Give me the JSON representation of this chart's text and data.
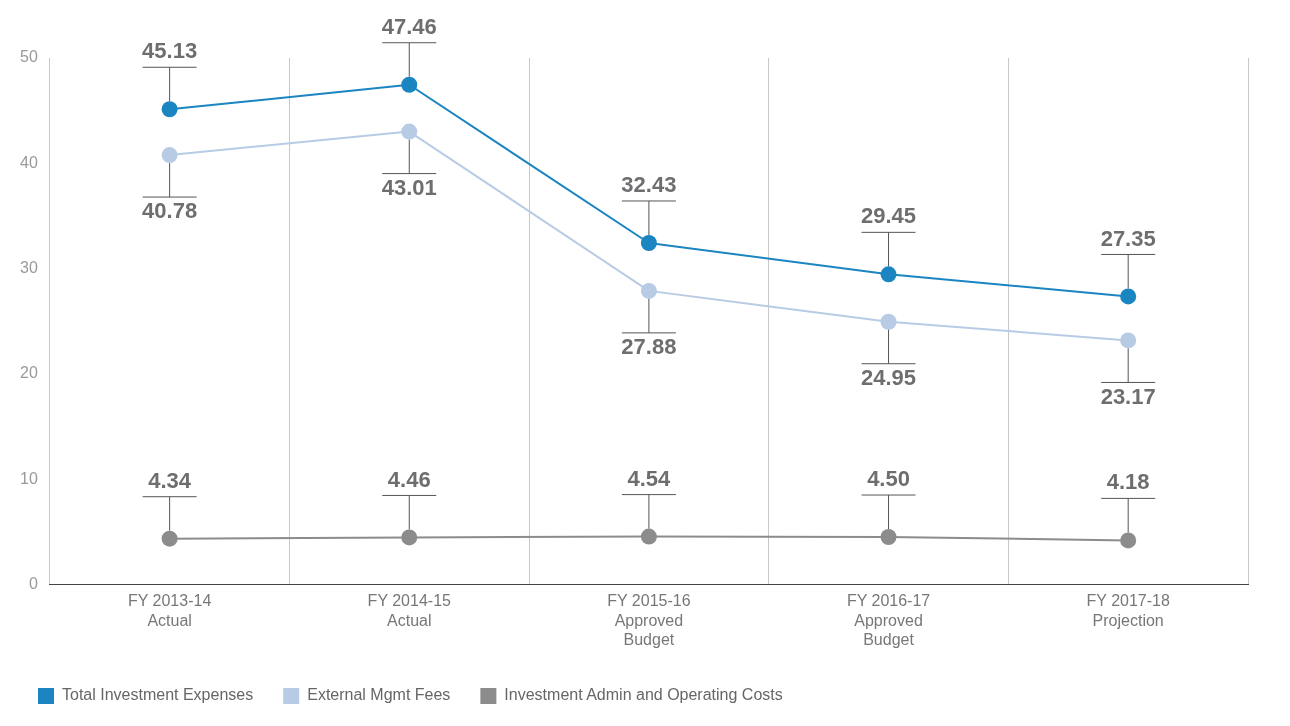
{
  "chart_data": {
    "type": "line",
    "categories": [
      "FY 2013-14\nActual",
      "FY 2014-15\nActual",
      "FY 2015-16\nApproved\nBudget",
      "FY 2016-17\nApproved\nBudget",
      "FY 2017-18\nProjection"
    ],
    "series": [
      {
        "name": "Total Investment Expenses",
        "color": "#1a85c0",
        "values": [
          45.13,
          47.46,
          32.43,
          29.45,
          27.35
        ],
        "value_labels": [
          "45.13",
          "47.46",
          "32.43",
          "29.45",
          "27.35"
        ]
      },
      {
        "name": "External Mgmt Fees",
        "color": "#b7cce4",
        "values": [
          40.78,
          43.01,
          27.88,
          24.95,
          23.17
        ],
        "value_labels": [
          "40.78",
          "43.01",
          "27.88",
          "24.95",
          "23.17"
        ]
      },
      {
        "name": "Investment Admin and Operating Costs",
        "color": "#8c8c8d",
        "values": [
          4.34,
          4.46,
          4.54,
          4.5,
          4.18
        ],
        "value_labels": [
          "4.34",
          "4.46",
          "4.54",
          "4.50",
          "4.18"
        ]
      }
    ],
    "ylim": [
      0,
      50
    ],
    "yticks": [
      0,
      10,
      20,
      30,
      40,
      50
    ],
    "grid": "x",
    "legend": "bottom left",
    "marker": "circle",
    "line_style": "solid"
  }
}
